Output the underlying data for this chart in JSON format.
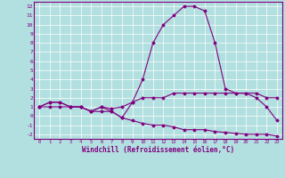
{
  "x_values": [
    0,
    1,
    2,
    3,
    4,
    5,
    6,
    7,
    8,
    9,
    10,
    11,
    12,
    13,
    14,
    15,
    16,
    17,
    18,
    19,
    20,
    21,
    22,
    23
  ],
  "line_temp_y": [
    1.0,
    1.5,
    1.5,
    1.0,
    1.0,
    0.5,
    1.0,
    0.8,
    1.0,
    1.5,
    2.0,
    2.0,
    2.0,
    2.5,
    2.5,
    2.5,
    2.5,
    2.5,
    2.5,
    2.5,
    2.5,
    2.5,
    2.0,
    2.0
  ],
  "line_wind_high_y": [
    1.0,
    1.5,
    1.5,
    1.0,
    1.0,
    0.5,
    1.0,
    0.5,
    -0.2,
    1.5,
    4.0,
    8.0,
    10.0,
    11.0,
    12.0,
    12.0,
    11.5,
    8.0,
    3.0,
    2.5,
    2.5,
    2.0,
    1.0,
    -0.5
  ],
  "line_wind_low_y": [
    1.0,
    1.0,
    1.0,
    1.0,
    1.0,
    0.5,
    0.5,
    0.5,
    -0.2,
    -0.5,
    -0.8,
    -1.0,
    -1.0,
    -1.2,
    -1.5,
    -1.5,
    -1.5,
    -1.7,
    -1.8,
    -1.9,
    -2.0,
    -2.0,
    -2.0,
    -2.2
  ],
  "line_color": "#800080",
  "bg_color": "#b2dfdf",
  "grid_color": "#ffffff",
  "xlabel": "Windchill (Refroidissement éolien,°C)",
  "ylim": [
    -2.5,
    12.5
  ],
  "xlim": [
    -0.5,
    23.5
  ],
  "yticks": [
    -2,
    -1,
    0,
    1,
    2,
    3,
    4,
    5,
    6,
    7,
    8,
    9,
    10,
    11,
    12
  ],
  "xticks": [
    0,
    1,
    2,
    3,
    4,
    5,
    6,
    7,
    8,
    9,
    10,
    11,
    12,
    13,
    14,
    15,
    16,
    17,
    18,
    19,
    20,
    21,
    22,
    23
  ]
}
